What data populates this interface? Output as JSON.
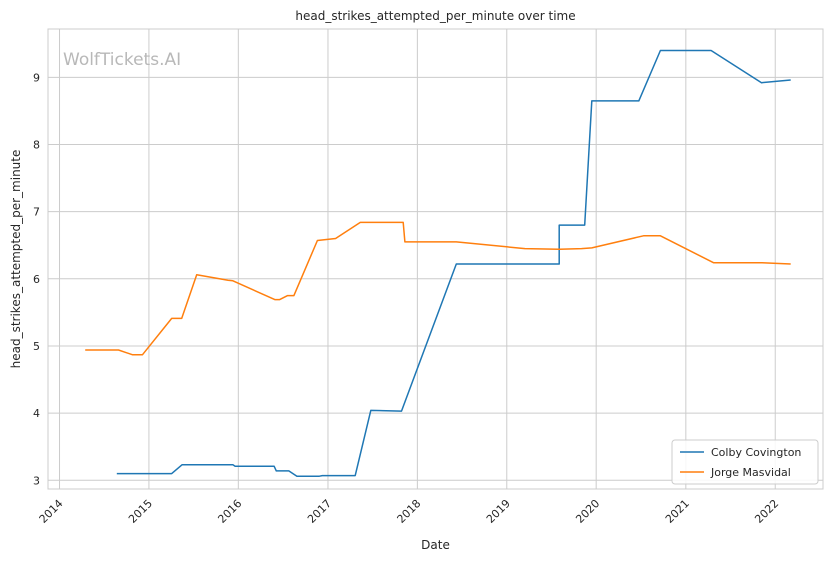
{
  "chart_data": {
    "type": "line",
    "title": "head_strikes_attempted_per_minute over time",
    "xlabel": "Date",
    "ylabel": "head_strikes_attempted_per_minute",
    "watermark": "WolfTickets.AI",
    "xlim": [
      "2013-11-15",
      "2022-07-15"
    ],
    "ylim": [
      2.87,
      9.72
    ],
    "x_ticks": [
      "2014",
      "2015",
      "2016",
      "2017",
      "2018",
      "2019",
      "2020",
      "2021",
      "2022"
    ],
    "y_ticks": [
      3,
      4,
      5,
      6,
      7,
      8,
      9
    ],
    "grid": true,
    "legend_position": "lower-right",
    "series": [
      {
        "name": "Colby Covington",
        "color": "#1f77b4",
        "points": [
          [
            "2014-08-23",
            3.1
          ],
          [
            "2015-04-04",
            3.1
          ],
          [
            "2015-05-16",
            3.23
          ],
          [
            "2015-12-10",
            3.23
          ],
          [
            "2015-12-19",
            3.21
          ],
          [
            "2016-05-26",
            3.21
          ],
          [
            "2016-06-04",
            3.14
          ],
          [
            "2016-07-25",
            3.14
          ],
          [
            "2016-08-27",
            3.06
          ],
          [
            "2016-11-27",
            3.06
          ],
          [
            "2016-12-09",
            3.07
          ],
          [
            "2017-04-22",
            3.07
          ],
          [
            "2017-06-25",
            4.04
          ],
          [
            "2017-10-28",
            4.03
          ],
          [
            "2018-06-09",
            6.22
          ],
          [
            "2019-08-03",
            6.22
          ],
          [
            "2019-08-03",
            6.8
          ],
          [
            "2019-11-15",
            6.8
          ],
          [
            "2019-12-14",
            8.65
          ],
          [
            "2020-06-23",
            8.65
          ],
          [
            "2020-09-19",
            9.4
          ],
          [
            "2021-04-14",
            9.4
          ],
          [
            "2021-11-06",
            8.92
          ],
          [
            "2022-03-05",
            8.96
          ]
        ]
      },
      {
        "name": "Jorge Masvidal",
        "color": "#ff7f0e",
        "points": [
          [
            "2014-04-16",
            4.94
          ],
          [
            "2014-08-30",
            4.94
          ],
          [
            "2014-10-25",
            4.87
          ],
          [
            "2014-12-06",
            4.87
          ],
          [
            "2015-04-04",
            5.41
          ],
          [
            "2015-05-15",
            5.41
          ],
          [
            "2015-07-15",
            6.06
          ],
          [
            "2015-11-20",
            5.98
          ],
          [
            "2015-12-10",
            5.97
          ],
          [
            "2016-05-29",
            5.69
          ],
          [
            "2016-06-18",
            5.69
          ],
          [
            "2016-07-20",
            5.75
          ],
          [
            "2016-08-15",
            5.75
          ],
          [
            "2016-11-19",
            6.57
          ],
          [
            "2017-02-01",
            6.6
          ],
          [
            "2017-05-13",
            6.84
          ],
          [
            "2017-11-04",
            6.84
          ],
          [
            "2017-11-11",
            6.55
          ],
          [
            "2018-06-09",
            6.55
          ],
          [
            "2019-03-16",
            6.45
          ],
          [
            "2019-08-03",
            6.44
          ],
          [
            "2019-11-02",
            6.45
          ],
          [
            "2019-12-14",
            6.46
          ],
          [
            "2020-07-12",
            6.64
          ],
          [
            "2020-09-19",
            6.64
          ],
          [
            "2021-04-24",
            6.24
          ],
          [
            "2021-11-06",
            6.24
          ],
          [
            "2022-03-05",
            6.22
          ]
        ]
      }
    ]
  }
}
